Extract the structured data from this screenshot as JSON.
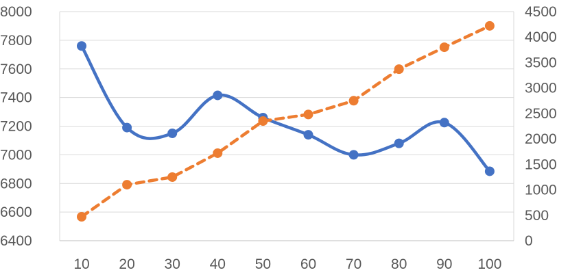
{
  "chart_data": {
    "type": "line",
    "title": "",
    "xlabel": "",
    "ylabel": "",
    "x": [
      10,
      20,
      30,
      40,
      50,
      60,
      70,
      80,
      90,
      100
    ],
    "x_ticks": [
      "10",
      "20",
      "30",
      "40",
      "50",
      "60",
      "70",
      "80",
      "90",
      "100"
    ],
    "y_left": {
      "range": [
        6400,
        8000
      ],
      "ticks": [
        6400,
        6600,
        6800,
        7000,
        7200,
        7400,
        7600,
        7800,
        8000
      ],
      "tick_labels": [
        "6400",
        "6600",
        "6800",
        "7000",
        "7200",
        "7400",
        "7600",
        "7800",
        "8000"
      ]
    },
    "y_right": {
      "range": [
        0,
        4500
      ],
      "ticks": [
        0,
        500,
        1000,
        1500,
        2000,
        2500,
        3000,
        3500,
        4000,
        4500
      ],
      "tick_labels": [
        "0",
        "500",
        "1000",
        "1500",
        "2000",
        "2500",
        "3000",
        "3500",
        "4000",
        "4500"
      ]
    },
    "grid": true,
    "legend": "none",
    "series": [
      {
        "axis": "left",
        "style": "solid-smooth",
        "color": "#4472C4",
        "values": [
          7760,
          7190,
          7150,
          7415,
          7260,
          7140,
          7000,
          7080,
          7225,
          6885
        ]
      },
      {
        "axis": "right",
        "style": "dashed",
        "color": "#ED7D31",
        "values": [
          470,
          1100,
          1250,
          1720,
          2350,
          2480,
          2750,
          3370,
          3800,
          4220
        ]
      }
    ]
  }
}
